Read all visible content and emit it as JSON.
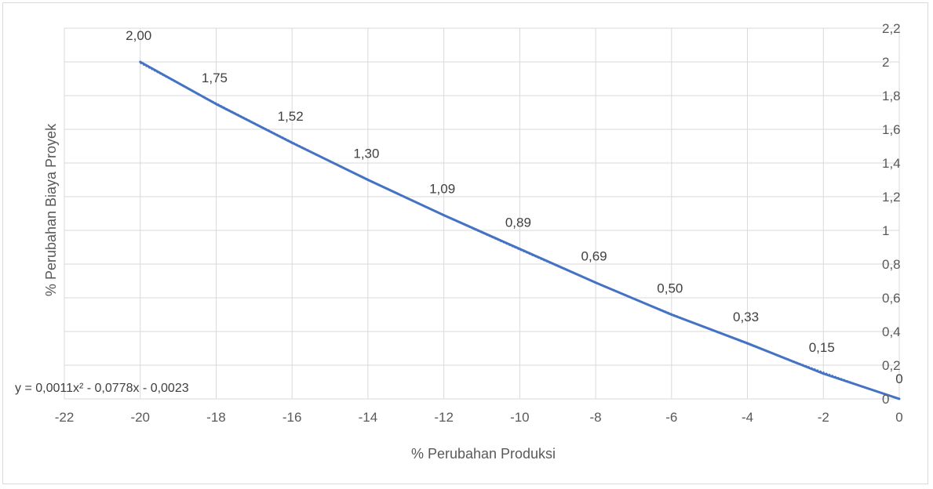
{
  "chart_data": {
    "type": "line",
    "title": "",
    "xlabel": "% Perubahan Produksi",
    "ylabel": "% Perubahan Biaya Proyek",
    "xlim": [
      -22,
      0
    ],
    "ylim": [
      0,
      2.2
    ],
    "x_ticks": [
      -22,
      -20,
      -18,
      -16,
      -14,
      -12,
      -10,
      -8,
      -6,
      -4,
      -2,
      0
    ],
    "x_tick_labels": [
      "-22",
      "-20",
      "-18",
      "-16",
      "-14",
      "-12",
      "-10",
      "-8",
      "-6",
      "-4",
      "-2",
      "0"
    ],
    "y_ticks": [
      0,
      0.2,
      0.4,
      0.6,
      0.8,
      1,
      1.2,
      1.4,
      1.6,
      1.8,
      2,
      2.2
    ],
    "y_tick_labels": [
      "0",
      "0,2",
      "0,4",
      "0,6",
      "0,8",
      "1",
      "1,2",
      "1,4",
      "1,6",
      "1,8",
      "2",
      "2,2"
    ],
    "y_axis_side": "right",
    "grid": true,
    "legend": "none",
    "series": [
      {
        "color": "#4472c4",
        "x": [
          -20,
          -18,
          -16,
          -14,
          -12,
          -10,
          -8,
          -6,
          -4,
          -2,
          0
        ],
        "y": [
          2.0,
          1.75,
          1.52,
          1.3,
          1.09,
          0.89,
          0.69,
          0.5,
          0.33,
          0.15,
          0
        ],
        "data_labels": [
          "2,00",
          "1,75",
          "1,52",
          "1,30",
          "1,09",
          "0,89",
          "0,69",
          "0,50",
          "0,33",
          "0,15",
          "0"
        ]
      }
    ],
    "trendline": {
      "type": "polynomial",
      "color": "#4472c4",
      "style": "dotted",
      "coefficients": [
        0.0011,
        -0.0778,
        -0.0023
      ],
      "equation_label": "y = 0,0011x² - 0,0778x - 0,0023"
    }
  }
}
